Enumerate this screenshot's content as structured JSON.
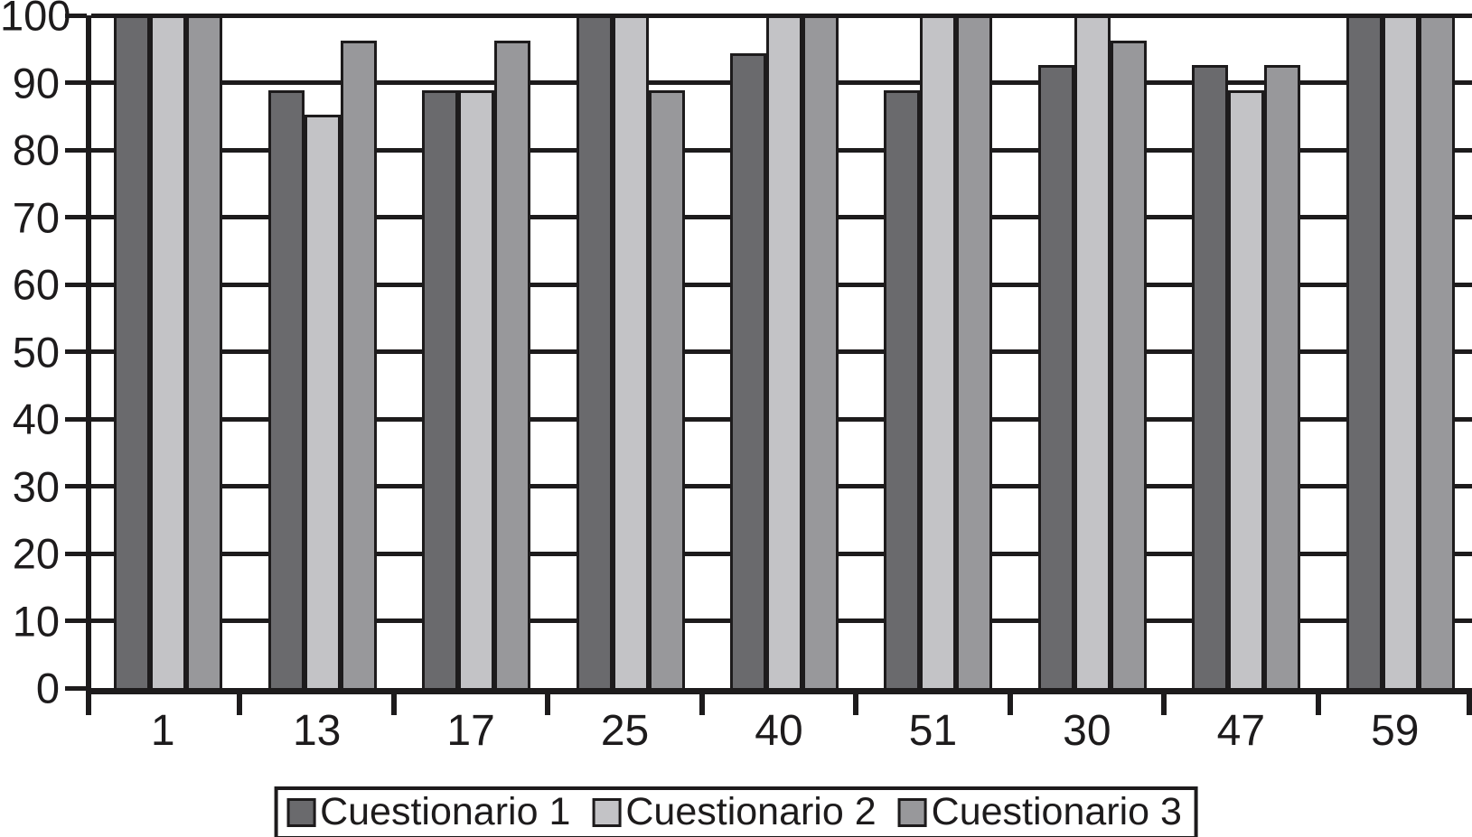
{
  "chart_data": {
    "type": "bar",
    "title": "",
    "xlabel": "",
    "ylabel": "",
    "categories": [
      "1",
      "13",
      "17",
      "25",
      "40",
      "51",
      "30",
      "47",
      "59"
    ],
    "series": [
      {
        "name": "Cuestionario 1",
        "color": "#6a6a6d",
        "values": [
          100,
          88.9,
          88.9,
          100,
          94.4,
          88.9,
          92.6,
          92.6,
          100
        ]
      },
      {
        "name": "Cuestionario 2",
        "color": "#c3c3c6",
        "values": [
          100,
          85.2,
          88.9,
          100,
          100,
          100,
          100,
          88.9,
          100
        ]
      },
      {
        "name": "Cuestionario 3",
        "color": "#98989b",
        "values": [
          100,
          96.3,
          96.3,
          88.9,
          100,
          100,
          96.3,
          92.6,
          100
        ]
      }
    ],
    "ylim": [
      0,
      100
    ],
    "yticks": [
      0,
      10,
      20,
      30,
      40,
      50,
      60,
      70,
      80,
      90,
      100
    ],
    "grid": "horizontal",
    "legend_position": "bottom",
    "colors": {
      "axis": "#1d1b1c",
      "background": "#ffffff"
    }
  }
}
